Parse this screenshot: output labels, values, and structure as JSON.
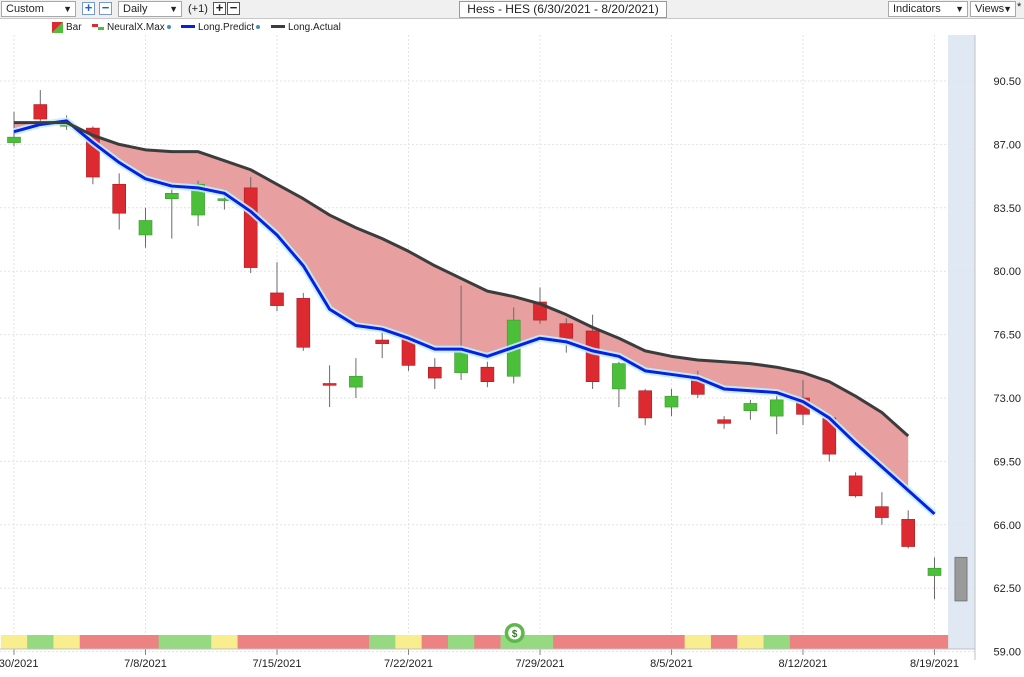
{
  "toolbar": {
    "range_select": "Custom",
    "interval_select": "Daily",
    "offset_label": "(+1)",
    "title": "Hess - HES (6/30/2021 - 8/20/2021)",
    "indicators_label": "Indicators",
    "views_label": "Views"
  },
  "legend": {
    "items": [
      "Bar",
      "NeuralX.Max",
      "Long.Predict",
      "Long.Actual"
    ]
  },
  "colors": {
    "up": "#4bbf3a",
    "down": "#dd2a30",
    "predict": "#0a1fe6",
    "actual": "#3c3c3c",
    "fill": "#e79a9a"
  },
  "chart_data": {
    "type": "candlestick",
    "ylim": [
      59.0,
      92.0
    ],
    "y_ticks": [
      "90.50",
      "87.00",
      "83.50",
      "80.00",
      "76.50",
      "73.00",
      "69.50",
      "66.00",
      "62.50",
      "59.00"
    ],
    "x_ticks": [
      {
        "index": 0,
        "label": "6/30/2021"
      },
      {
        "index": 5,
        "label": "7/8/2021"
      },
      {
        "index": 10,
        "label": "7/15/2021"
      },
      {
        "index": 15,
        "label": "7/22/2021"
      },
      {
        "index": 20,
        "label": "7/29/2021"
      },
      {
        "index": 25,
        "label": "8/5/2021"
      },
      {
        "index": 30,
        "label": "8/12/2021"
      },
      {
        "index": 35,
        "label": "8/19/2021"
      }
    ],
    "bars": [
      {
        "date": "6/30",
        "open": 87.1,
        "high": 88.8,
        "low": 86.9,
        "close": 87.4
      },
      {
        "date": "7/1",
        "open": 89.2,
        "high": 90.0,
        "low": 88.0,
        "close": 88.4
      },
      {
        "date": "7/2",
        "open": 88.0,
        "high": 88.6,
        "low": 87.8,
        "close": 88.2
      },
      {
        "date": "7/6",
        "open": 87.9,
        "high": 88.0,
        "low": 84.8,
        "close": 85.2
      },
      {
        "date": "7/7",
        "open": 84.8,
        "high": 85.4,
        "low": 82.3,
        "close": 83.2
      },
      {
        "date": "7/8",
        "open": 82.0,
        "high": 83.5,
        "low": 81.3,
        "close": 82.8
      },
      {
        "date": "7/9",
        "open": 84.0,
        "high": 84.5,
        "low": 81.8,
        "close": 84.3
      },
      {
        "date": "7/12",
        "open": 83.1,
        "high": 85.0,
        "low": 82.5,
        "close": 84.8
      },
      {
        "date": "7/13",
        "open": 83.9,
        "high": 84.5,
        "low": 83.4,
        "close": 84.0
      },
      {
        "date": "7/14",
        "open": 84.6,
        "high": 85.2,
        "low": 79.9,
        "close": 80.2
      },
      {
        "date": "7/15",
        "open": 78.8,
        "high": 80.5,
        "low": 77.8,
        "close": 78.1
      },
      {
        "date": "7/16",
        "open": 78.5,
        "high": 78.8,
        "low": 75.6,
        "close": 75.8
      },
      {
        "date": "7/19",
        "open": 73.8,
        "high": 74.8,
        "low": 72.5,
        "close": 73.7
      },
      {
        "date": "7/20",
        "open": 73.6,
        "high": 75.2,
        "low": 73.0,
        "close": 74.2
      },
      {
        "date": "7/21",
        "open": 76.2,
        "high": 76.8,
        "low": 75.2,
        "close": 76.0
      },
      {
        "date": "7/22",
        "open": 76.3,
        "high": 76.5,
        "low": 74.5,
        "close": 74.8
      },
      {
        "date": "7/23",
        "open": 74.7,
        "high": 75.2,
        "low": 73.5,
        "close": 74.1
      },
      {
        "date": "7/26",
        "open": 74.4,
        "high": 79.2,
        "low": 74.0,
        "close": 75.6
      },
      {
        "date": "7/27",
        "open": 74.7,
        "high": 75.0,
        "low": 73.6,
        "close": 73.9
      },
      {
        "date": "7/28",
        "open": 74.2,
        "high": 78.0,
        "low": 73.8,
        "close": 77.3
      },
      {
        "date": "7/29",
        "open": 78.3,
        "high": 79.1,
        "low": 77.1,
        "close": 77.3
      },
      {
        "date": "7/30",
        "open": 77.1,
        "high": 77.4,
        "low": 75.5,
        "close": 76.3
      },
      {
        "date": "8/2",
        "open": 76.7,
        "high": 77.6,
        "low": 73.5,
        "close": 73.9
      },
      {
        "date": "8/3",
        "open": 73.5,
        "high": 75.0,
        "low": 72.5,
        "close": 74.9
      },
      {
        "date": "8/4",
        "open": 73.4,
        "high": 73.5,
        "low": 71.5,
        "close": 71.9
      },
      {
        "date": "8/5",
        "open": 72.5,
        "high": 73.5,
        "low": 72.0,
        "close": 73.1
      },
      {
        "date": "8/6",
        "open": 74.1,
        "high": 74.5,
        "low": 73.0,
        "close": 73.2
      },
      {
        "date": "8/9",
        "open": 71.8,
        "high": 72.0,
        "low": 71.3,
        "close": 71.6
      },
      {
        "date": "8/10",
        "open": 72.3,
        "high": 72.9,
        "low": 71.8,
        "close": 72.7
      },
      {
        "date": "8/11",
        "open": 72.0,
        "high": 73.2,
        "low": 71.0,
        "close": 72.9
      },
      {
        "date": "8/12",
        "open": 73.0,
        "high": 74.0,
        "low": 71.5,
        "close": 72.1
      },
      {
        "date": "8/13",
        "open": 71.9,
        "high": 72.0,
        "low": 69.5,
        "close": 69.9
      },
      {
        "date": "8/16",
        "open": 68.7,
        "high": 68.9,
        "low": 67.5,
        "close": 67.6
      },
      {
        "date": "8/17",
        "open": 67.0,
        "high": 67.8,
        "low": 66.0,
        "close": 66.4
      },
      {
        "date": "8/18",
        "open": 66.3,
        "high": 66.8,
        "low": 64.7,
        "close": 64.8
      },
      {
        "date": "8/19",
        "open": 63.2,
        "high": 64.2,
        "low": 61.9,
        "close": 63.6
      }
    ],
    "long_actual": [
      88.2,
      88.2,
      88.2,
      87.5,
      87.0,
      86.7,
      86.6,
      86.6,
      86.1,
      85.6,
      84.8,
      84.0,
      83.1,
      82.4,
      81.8,
      81.1,
      80.3,
      79.6,
      78.9,
      78.6,
      78.2,
      77.6,
      76.9,
      76.3,
      75.6,
      75.3,
      75.1,
      75.0,
      74.9,
      74.7,
      74.4,
      73.9,
      73.1,
      72.2,
      70.9
    ],
    "long_predict": [
      87.7,
      88.1,
      88.3,
      87.1,
      86.0,
      85.1,
      84.7,
      84.6,
      84.3,
      83.3,
      82.0,
      80.3,
      77.9,
      77.0,
      76.8,
      76.3,
      75.7,
      75.7,
      75.3,
      75.8,
      76.3,
      76.1,
      75.6,
      75.3,
      74.5,
      74.3,
      74.1,
      73.5,
      73.4,
      73.3,
      72.8,
      71.9,
      70.5,
      69.2,
      67.9,
      66.6
    ],
    "projection_bar": {
      "high": 64.2,
      "low": 61.8
    },
    "signal_strip": [
      "y",
      "g",
      "y",
      "r",
      "r",
      "r",
      "g",
      "g",
      "y",
      "r",
      "r",
      "r",
      "r",
      "r",
      "g",
      "y",
      "r",
      "g",
      "r",
      "g",
      "g",
      "r",
      "r",
      "r",
      "r",
      "r",
      "y",
      "r",
      "y",
      "g",
      "r",
      "r",
      "r",
      "r",
      "r",
      "r"
    ],
    "marker": "$"
  }
}
